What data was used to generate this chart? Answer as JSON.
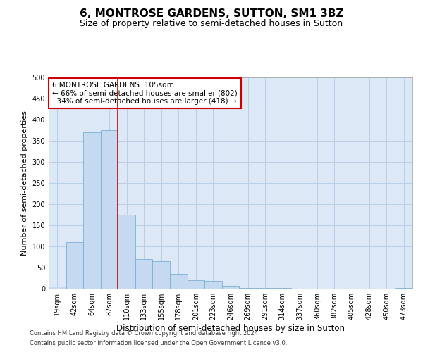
{
  "title1": "6, MONTROSE GARDENS, SUTTON, SM1 3BZ",
  "title2": "Size of property relative to semi-detached houses in Sutton",
  "xlabel": "Distribution of semi-detached houses by size in Sutton",
  "ylabel": "Number of semi-detached properties",
  "categories": [
    "19sqm",
    "42sqm",
    "64sqm",
    "87sqm",
    "110sqm",
    "133sqm",
    "155sqm",
    "178sqm",
    "201sqm",
    "223sqm",
    "246sqm",
    "269sqm",
    "291sqm",
    "314sqm",
    "337sqm",
    "360sqm",
    "382sqm",
    "405sqm",
    "428sqm",
    "450sqm",
    "473sqm"
  ],
  "values": [
    5,
    110,
    370,
    375,
    175,
    70,
    65,
    35,
    20,
    18,
    7,
    2,
    2,
    2,
    0,
    0,
    0,
    0,
    0,
    0,
    2
  ],
  "bar_color": "#c5d9f0",
  "bar_edgecolor": "#7bafd4",
  "vline_color": "#cc0000",
  "annotation_text": "6 MONTROSE GARDENS: 105sqm\n← 66% of semi-detached houses are smaller (802)\n  34% of semi-detached houses are larger (418) →",
  "annotation_box_color": "#ffffff",
  "annotation_box_edgecolor": "#cc0000",
  "ylim": [
    0,
    500
  ],
  "yticks": [
    0,
    50,
    100,
    150,
    200,
    250,
    300,
    350,
    400,
    450,
    500
  ],
  "grid_color": "#b8cfe8",
  "bg_color": "#dce8f5",
  "footer1": "Contains HM Land Registry data © Crown copyright and database right 2024.",
  "footer2": "Contains public sector information licensed under the Open Government Licence v3.0.",
  "title_fontsize": 11,
  "subtitle_fontsize": 9,
  "tick_fontsize": 7,
  "xlabel_fontsize": 8.5,
  "ylabel_fontsize": 8,
  "annotation_fontsize": 7.5,
  "footer_fontsize": 6
}
